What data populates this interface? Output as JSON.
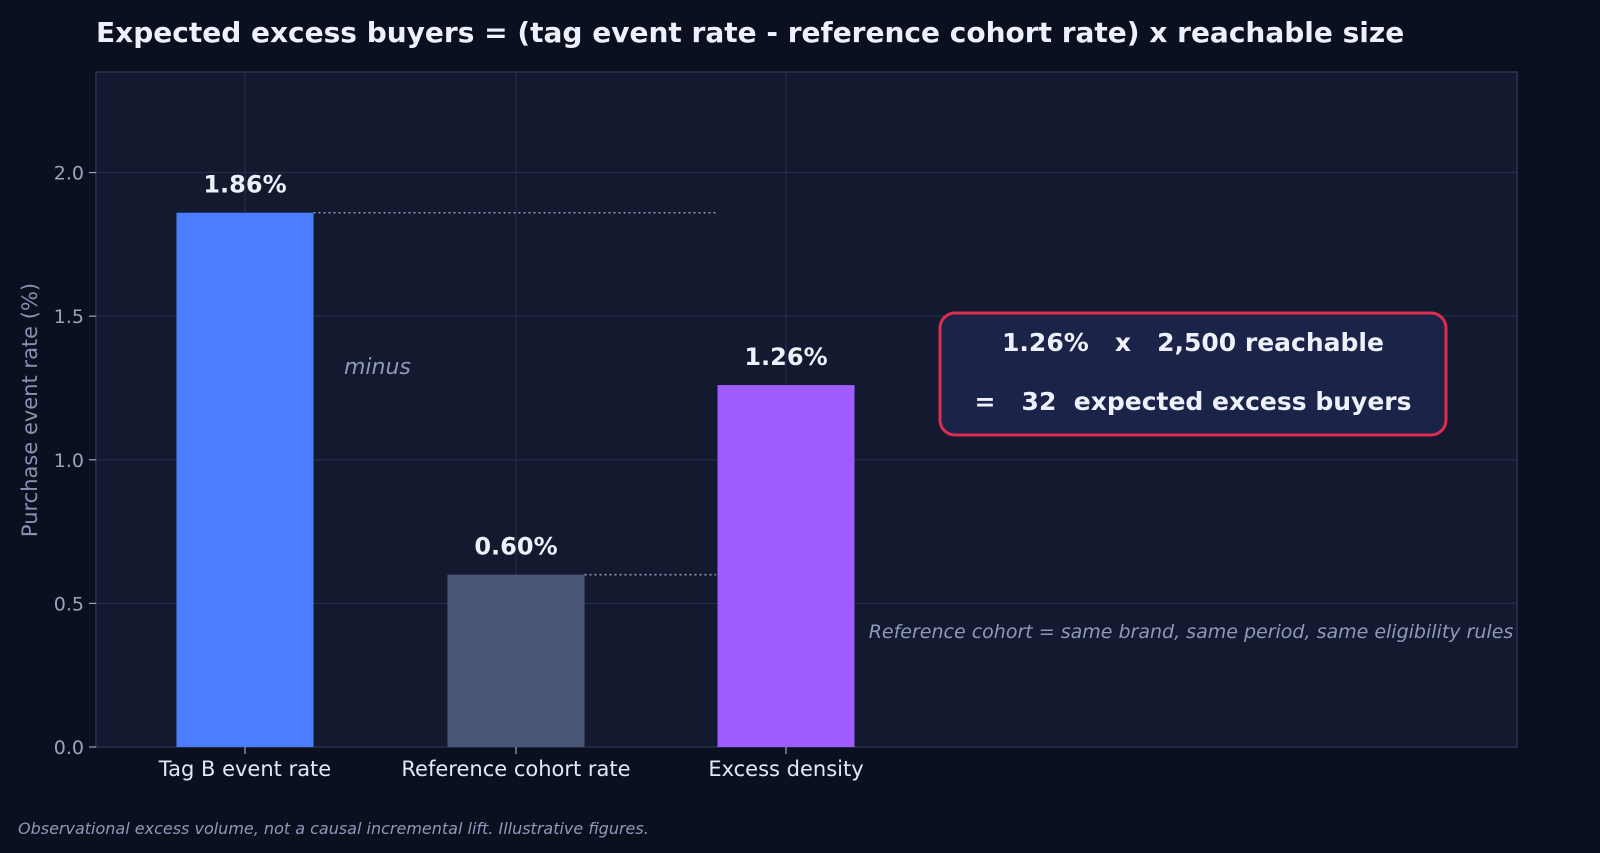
{
  "chart_data": {
    "type": "bar",
    "title": "Expected excess buyers = (tag event rate - reference cohort rate) x reachable size",
    "ylabel": "Purchase event rate (%)",
    "xlabel": "",
    "categories": [
      "Tag B event rate",
      "Reference cohort rate",
      "Excess density"
    ],
    "values": [
      1.86,
      0.6,
      1.26
    ],
    "data_labels": [
      "1.86%",
      "0.60%",
      "1.26%"
    ],
    "colors": [
      "#4a7dff",
      "#4b5677",
      "#a05cff"
    ],
    "ylim": [
      0,
      2.35
    ],
    "yticks": [
      0.0,
      0.5,
      1.0,
      1.5,
      2.0
    ],
    "ytick_labels": [
      "0.0",
      "0.5",
      "1.0",
      "1.5",
      "2.0"
    ],
    "grid": true,
    "annotations": {
      "minus": "minus",
      "callout_line1": "1.26%   x   2,500 reachable",
      "callout_line2": "=   32  expected excess buyers",
      "reference_note": "Reference cohort = same brand, same period, same eligibility rules"
    },
    "footnote": "Observational excess volume, not a causal incremental lift. Illustrative figures."
  },
  "colors": {
    "page_bg": "#0b1020",
    "plot_bg": "#131a2f",
    "plot_border": "#2a3352",
    "grid": "#232c48",
    "callout_bg": "#1b2448",
    "callout_border": "#dc2d4f",
    "dotted_line": "#8e97b6"
  }
}
